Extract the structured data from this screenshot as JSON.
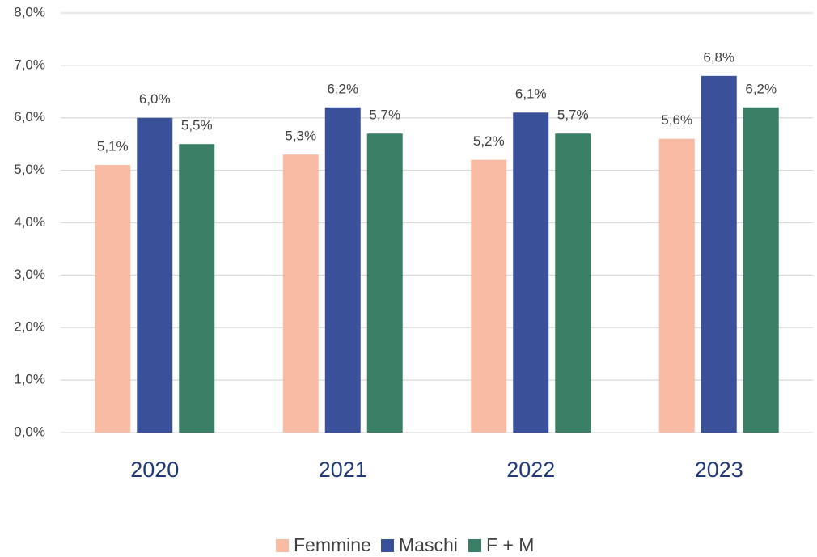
{
  "chart_data": {
    "type": "bar",
    "categories": [
      "2020",
      "2021",
      "2022",
      "2023"
    ],
    "series": [
      {
        "name": "Femmine",
        "color": "#f9bba3",
        "values": [
          5.1,
          5.3,
          5.2,
          5.6
        ],
        "value_labels": [
          "5,1%",
          "5,3%",
          "5,2%",
          "5,6%"
        ]
      },
      {
        "name": "Maschi",
        "color": "#3a5199",
        "values": [
          6.0,
          6.2,
          6.1,
          6.8
        ],
        "value_labels": [
          "6,0%",
          "6,2%",
          "6,1%",
          "6,8%"
        ]
      },
      {
        "name": "F + M",
        "color": "#3a8066",
        "values": [
          5.5,
          5.7,
          5.7,
          6.2
        ],
        "value_labels": [
          "5,5%",
          "5,7%",
          "5,7%",
          "6,2%"
        ]
      }
    ],
    "ylim": [
      0,
      8
    ],
    "yticks": [
      {
        "value": 0,
        "label": "0,0%"
      },
      {
        "value": 1,
        "label": "1,0%"
      },
      {
        "value": 2,
        "label": "2,0%"
      },
      {
        "value": 3,
        "label": "3,0%"
      },
      {
        "value": 4,
        "label": "4,0%"
      },
      {
        "value": 5,
        "label": "5,0%"
      },
      {
        "value": 6,
        "label": "6,0%"
      },
      {
        "value": 7,
        "label": "7,0%"
      },
      {
        "value": 8,
        "label": "8,0%"
      }
    ],
    "grid": true,
    "legend": "bottom"
  }
}
